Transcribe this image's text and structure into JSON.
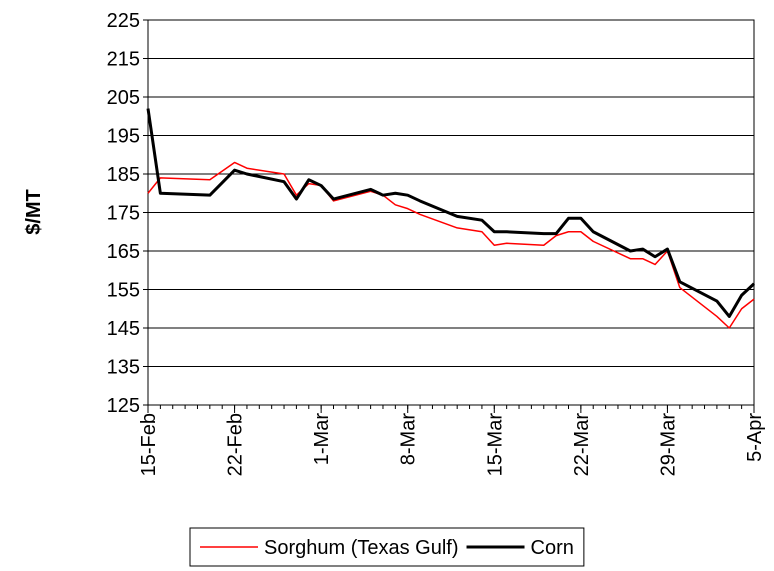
{
  "chart_data": {
    "type": "line",
    "y_label": "$/MT",
    "x": [
      "15-Feb",
      "16-Feb",
      "20-Feb",
      "22-Feb",
      "23-Feb",
      "26-Feb",
      "27-Feb",
      "28-Feb",
      "1-Mar",
      "2-Mar",
      "5-Mar",
      "6-Mar",
      "7-Mar",
      "8-Mar",
      "9-Mar",
      "12-Mar",
      "14-Mar",
      "15-Mar",
      "16-Mar",
      "19-Mar",
      "20-Mar",
      "21-Mar",
      "22-Mar",
      "23-Mar",
      "26-Mar",
      "27-Mar",
      "28-Mar",
      "29-Mar",
      "30-Mar",
      "2-Apr",
      "3-Apr",
      "4-Apr",
      "5-Apr"
    ],
    "series": [
      {
        "name": "Sorghum (Texas Gulf)",
        "color": "#ff0000",
        "width": 1.5,
        "values": [
          180,
          184,
          183.5,
          188,
          186.5,
          185,
          179.5,
          182.5,
          182,
          178,
          180.5,
          179.5,
          177,
          176,
          174.5,
          171,
          170,
          166.5,
          167,
          166.5,
          169,
          170,
          170,
          167.5,
          163,
          163,
          161.5,
          165,
          155.5,
          148,
          145,
          150,
          152.5
        ]
      },
      {
        "name": "Corn",
        "color": "#000000",
        "width": 3,
        "values": [
          202,
          180,
          179.5,
          186,
          185,
          183,
          178.5,
          183.5,
          182,
          178.5,
          181,
          179.5,
          180,
          179.5,
          178,
          174,
          173,
          170,
          170,
          169.5,
          169.5,
          173.5,
          173.5,
          170,
          165,
          165.5,
          163.5,
          165.5,
          157,
          152,
          148,
          153.5,
          156.5
        ]
      }
    ],
    "xlim": [
      "15-Feb",
      "5-Apr"
    ],
    "xticks": [
      "15-Feb",
      "22-Feb",
      "1-Mar",
      "8-Mar",
      "15-Mar",
      "22-Mar",
      "29-Mar",
      "5-Apr"
    ],
    "ylim": [
      125,
      225
    ],
    "yticks": [
      125,
      135,
      145,
      155,
      165,
      175,
      185,
      195,
      205,
      215,
      225
    ],
    "grid": true
  }
}
